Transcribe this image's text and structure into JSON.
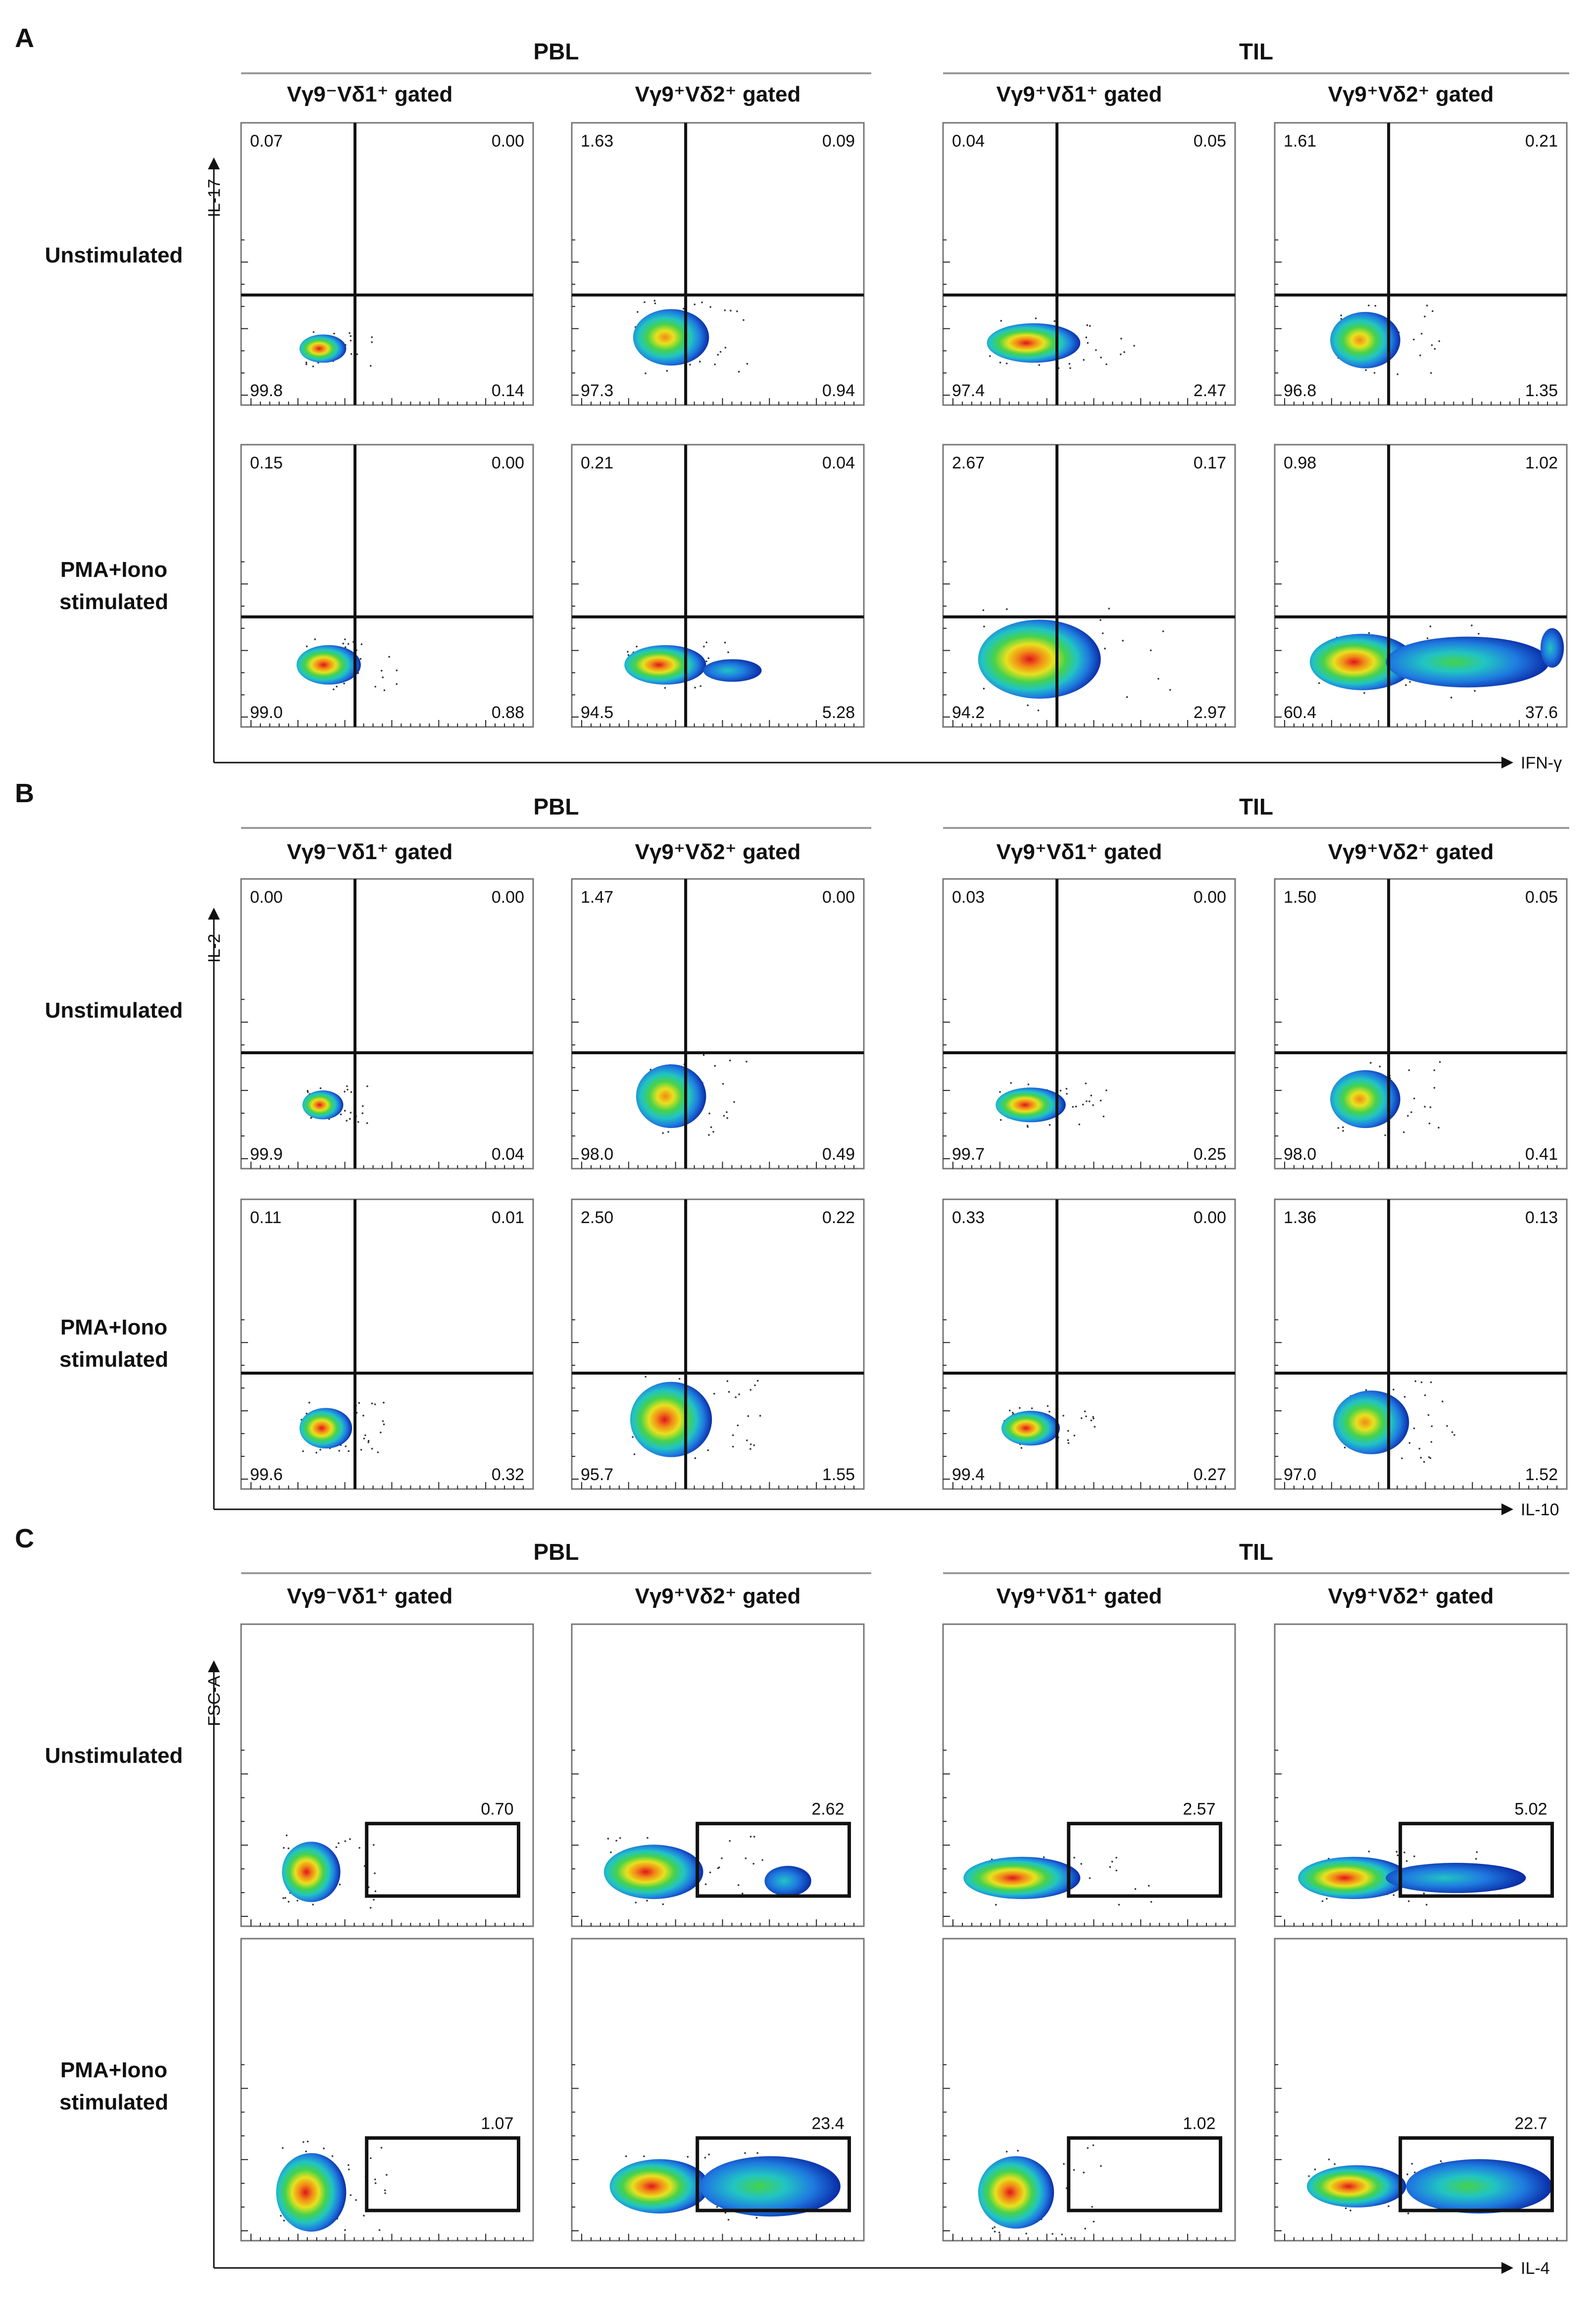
{
  "chart_data": {
    "type": "scatter",
    "colors": {
      "density": [
        "#0a2aa5",
        "#1f7ae0",
        "#21c4c4",
        "#46d24b",
        "#e8e11e",
        "#f28a17",
        "#e0141e"
      ],
      "line": "#111111",
      "group_rule": "#9a9a9a",
      "dots": "#333333"
    },
    "panels": [
      {
        "id": "A",
        "type": "quadrant",
        "y_axis_label": "IL-17",
        "x_axis_label": "IFN-γ",
        "groups": [
          {
            "label": "PBL",
            "columns": [
              "Vγ9⁻Vδ1⁺ gated",
              "Vγ9⁺Vδ2⁺ gated"
            ]
          },
          {
            "label": "TIL",
            "columns": [
              "Vγ9⁺Vδ1⁺ gated",
              "Vγ9⁺Vδ2⁺ gated"
            ]
          }
        ],
        "rows": [
          {
            "label": [
              "Unstimulated"
            ],
            "plots": [
              {
                "quadrants": {
                  "ul": "0.07",
                  "ur": "0.00",
                  "ll": "99.8",
                  "lr": "0.14"
                },
                "blobs": [
                  {
                    "cx": 0.28,
                    "cy": 0.8,
                    "rx": 0.08,
                    "ry": 0.05,
                    "peak": 6
                  }
                ]
              },
              {
                "quadrants": {
                  "ul": "1.63",
                  "ur": "0.09",
                  "ll": "97.3",
                  "lr": "0.94"
                },
                "blobs": [
                  {
                    "cx": 0.34,
                    "cy": 0.76,
                    "rx": 0.13,
                    "ry": 0.1,
                    "peak": 5
                  }
                ]
              },
              {
                "quadrants": {
                  "ul": "0.04",
                  "ur": "0.05",
                  "ll": "97.4",
                  "lr": "2.47"
                },
                "blobs": [
                  {
                    "cx": 0.31,
                    "cy": 0.78,
                    "rx": 0.16,
                    "ry": 0.07,
                    "peak": 6
                  }
                ]
              },
              {
                "quadrants": {
                  "ul": "1.61",
                  "ur": "0.21",
                  "ll": "96.8",
                  "lr": "1.35"
                },
                "blobs": [
                  {
                    "cx": 0.31,
                    "cy": 0.77,
                    "rx": 0.12,
                    "ry": 0.1,
                    "peak": 5
                  }
                ]
              }
            ]
          },
          {
            "label": [
              "PMA+Iono",
              "stimulated"
            ],
            "plots": [
              {
                "quadrants": {
                  "ul": "0.15",
                  "ur": "0.00",
                  "ll": "99.0",
                  "lr": "0.88"
                },
                "blobs": [
                  {
                    "cx": 0.3,
                    "cy": 0.78,
                    "rx": 0.11,
                    "ry": 0.07,
                    "peak": 6
                  }
                ]
              },
              {
                "quadrants": {
                  "ul": "0.21",
                  "ur": "0.04",
                  "ll": "94.5",
                  "lr": "5.28"
                },
                "blobs": [
                  {
                    "cx": 0.32,
                    "cy": 0.78,
                    "rx": 0.14,
                    "ry": 0.07,
                    "peak": 6
                  },
                  {
                    "cx": 0.55,
                    "cy": 0.8,
                    "rx": 0.1,
                    "ry": 0.04,
                    "peak": 2
                  }
                ]
              },
              {
                "quadrants": {
                  "ul": "2.67",
                  "ur": "0.17",
                  "ll": "94.2",
                  "lr": "2.97"
                },
                "blobs": [
                  {
                    "cx": 0.33,
                    "cy": 0.76,
                    "rx": 0.21,
                    "ry": 0.14,
                    "peak": 6
                  }
                ]
              },
              {
                "quadrants": {
                  "ul": "0.98",
                  "ur": "1.02",
                  "ll": "60.4",
                  "lr": "37.6"
                },
                "blobs": [
                  {
                    "cx": 0.3,
                    "cy": 0.77,
                    "rx": 0.18,
                    "ry": 0.1,
                    "peak": 6
                  },
                  {
                    "cx": 0.66,
                    "cy": 0.77,
                    "rx": 0.28,
                    "ry": 0.09,
                    "peak": 3
                  },
                  {
                    "cx": 0.95,
                    "cy": 0.72,
                    "rx": 0.04,
                    "ry": 0.07,
                    "peak": 2
                  }
                ]
              }
            ]
          }
        ]
      },
      {
        "id": "B",
        "type": "quadrant",
        "y_axis_label": "IL-2",
        "x_axis_label": "IL-10",
        "groups": [
          {
            "label": "PBL",
            "columns": [
              "Vγ9⁻Vδ1⁺ gated",
              "Vγ9⁺Vδ2⁺ gated"
            ]
          },
          {
            "label": "TIL",
            "columns": [
              "Vγ9⁺Vδ1⁺ gated",
              "Vγ9⁺Vδ2⁺ gated"
            ]
          }
        ],
        "rows": [
          {
            "label": [
              "Unstimulated"
            ],
            "plots": [
              {
                "quadrants": {
                  "ul": "0.00",
                  "ur": "0.00",
                  "ll": "99.9",
                  "lr": "0.04"
                },
                "blobs": [
                  {
                    "cx": 0.28,
                    "cy": 0.78,
                    "rx": 0.07,
                    "ry": 0.05,
                    "peak": 6
                  }
                ]
              },
              {
                "quadrants": {
                  "ul": "1.47",
                  "ur": "0.00",
                  "ll": "98.0",
                  "lr": "0.49"
                },
                "blobs": [
                  {
                    "cx": 0.34,
                    "cy": 0.75,
                    "rx": 0.12,
                    "ry": 0.11,
                    "peak": 5
                  }
                ]
              },
              {
                "quadrants": {
                  "ul": "0.03",
                  "ur": "0.00",
                  "ll": "99.7",
                  "lr": "0.25"
                },
                "blobs": [
                  {
                    "cx": 0.3,
                    "cy": 0.78,
                    "rx": 0.12,
                    "ry": 0.06,
                    "peak": 6
                  }
                ]
              },
              {
                "quadrants": {
                  "ul": "1.50",
                  "ur": "0.05",
                  "ll": "98.0",
                  "lr": "0.41"
                },
                "blobs": [
                  {
                    "cx": 0.31,
                    "cy": 0.76,
                    "rx": 0.12,
                    "ry": 0.1,
                    "peak": 5
                  }
                ]
              }
            ]
          },
          {
            "label": [
              "PMA+Iono",
              "stimulated"
            ],
            "plots": [
              {
                "quadrants": {
                  "ul": "0.11",
                  "ur": "0.01",
                  "ll": "99.6",
                  "lr": "0.32"
                },
                "blobs": [
                  {
                    "cx": 0.29,
                    "cy": 0.79,
                    "rx": 0.09,
                    "ry": 0.07,
                    "peak": 6
                  }
                ]
              },
              {
                "quadrants": {
                  "ul": "2.50",
                  "ur": "0.22",
                  "ll": "95.7",
                  "lr": "1.55"
                },
                "blobs": [
                  {
                    "cx": 0.34,
                    "cy": 0.76,
                    "rx": 0.14,
                    "ry": 0.13,
                    "peak": 6
                  }
                ]
              },
              {
                "quadrants": {
                  "ul": "0.33",
                  "ur": "0.00",
                  "ll": "99.4",
                  "lr": "0.27"
                },
                "blobs": [
                  {
                    "cx": 0.3,
                    "cy": 0.79,
                    "rx": 0.1,
                    "ry": 0.06,
                    "peak": 6
                  }
                ]
              },
              {
                "quadrants": {
                  "ul": "1.36",
                  "ur": "0.13",
                  "ll": "97.0",
                  "lr": "1.52"
                },
                "blobs": [
                  {
                    "cx": 0.33,
                    "cy": 0.77,
                    "rx": 0.13,
                    "ry": 0.11,
                    "peak": 5
                  }
                ]
              }
            ]
          }
        ]
      },
      {
        "id": "C",
        "type": "gate",
        "y_axis_label": "FSC-A",
        "x_axis_label": "IL-4",
        "groups": [
          {
            "label": "PBL",
            "columns": [
              "Vγ9⁻Vδ1⁺ gated",
              "Vγ9⁺Vδ2⁺ gated"
            ]
          },
          {
            "label": "TIL",
            "columns": [
              "Vγ9⁺Vδ1⁺ gated",
              "Vγ9⁺Vδ2⁺ gated"
            ]
          }
        ],
        "rows": [
          {
            "label": [
              "Unstimulated"
            ],
            "plots": [
              {
                "gate_value": "0.70",
                "blobs": [
                  {
                    "cx": 0.24,
                    "cy": 0.82,
                    "rx": 0.1,
                    "ry": 0.1,
                    "peak": 6
                  }
                ]
              },
              {
                "gate_value": "2.62",
                "blobs": [
                  {
                    "cx": 0.28,
                    "cy": 0.82,
                    "rx": 0.17,
                    "ry": 0.09,
                    "peak": 6
                  },
                  {
                    "cx": 0.74,
                    "cy": 0.85,
                    "rx": 0.08,
                    "ry": 0.05,
                    "peak": 2
                  }
                ]
              },
              {
                "gate_value": "2.57",
                "blobs": [
                  {
                    "cx": 0.27,
                    "cy": 0.84,
                    "rx": 0.2,
                    "ry": 0.07,
                    "peak": 6
                  }
                ]
              },
              {
                "gate_value": "5.02",
                "blobs": [
                  {
                    "cx": 0.27,
                    "cy": 0.84,
                    "rx": 0.19,
                    "ry": 0.07,
                    "peak": 6
                  },
                  {
                    "cx": 0.62,
                    "cy": 0.84,
                    "rx": 0.24,
                    "ry": 0.05,
                    "peak": 2
                  }
                ]
              }
            ]
          },
          {
            "label": [
              "PMA+Iono",
              "stimulated"
            ],
            "plots": [
              {
                "gate_value": "1.07",
                "blobs": [
                  {
                    "cx": 0.24,
                    "cy": 0.84,
                    "rx": 0.12,
                    "ry": 0.13,
                    "peak": 6
                  }
                ]
              },
              {
                "gate_value": "23.4",
                "blobs": [
                  {
                    "cx": 0.3,
                    "cy": 0.82,
                    "rx": 0.17,
                    "ry": 0.09,
                    "peak": 6
                  },
                  {
                    "cx": 0.68,
                    "cy": 0.82,
                    "rx": 0.24,
                    "ry": 0.1,
                    "peak": 3
                  }
                ]
              },
              {
                "gate_value": "1.02",
                "blobs": [
                  {
                    "cx": 0.25,
                    "cy": 0.84,
                    "rx": 0.13,
                    "ry": 0.12,
                    "peak": 6
                  }
                ]
              },
              {
                "gate_value": "22.7",
                "blobs": [
                  {
                    "cx": 0.28,
                    "cy": 0.82,
                    "rx": 0.17,
                    "ry": 0.07,
                    "peak": 6
                  },
                  {
                    "cx": 0.7,
                    "cy": 0.82,
                    "rx": 0.25,
                    "ry": 0.09,
                    "peak": 3
                  }
                ]
              }
            ]
          }
        ]
      }
    ]
  }
}
